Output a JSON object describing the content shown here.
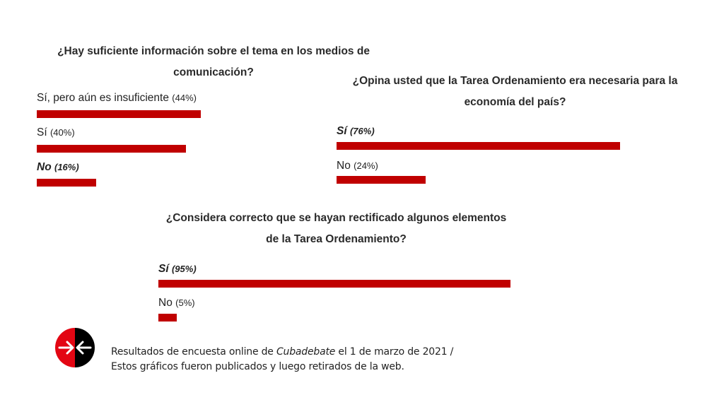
{
  "chart_data": [
    {
      "type": "bar",
      "orientation": "horizontal",
      "title_lines": [
        "¿Hay suficiente información sobre el tema en los medios de",
        "comunicación?"
      ],
      "categories": [
        "Sí, pero aún es insuficiente",
        "Sí",
        "No"
      ],
      "value_labels": [
        "(44%)",
        "(40%)",
        "(16%)"
      ],
      "values": [
        44,
        40,
        16
      ],
      "emphasized": [
        false,
        false,
        true
      ],
      "xlim": [
        0,
        100
      ],
      "bar_color": "#c00000"
    },
    {
      "type": "bar",
      "orientation": "horizontal",
      "title_lines": [
        "¿Opina usted que la Tarea Ordenamiento era necesaria para la",
        "economía del país?"
      ],
      "categories": [
        "Sí",
        "No"
      ],
      "value_labels": [
        "(76%)",
        "(24%)"
      ],
      "values": [
        76,
        24
      ],
      "emphasized": [
        true,
        false
      ],
      "xlim": [
        0,
        100
      ],
      "bar_color": "#c00000"
    },
    {
      "type": "bar",
      "orientation": "horizontal",
      "title_lines": [
        "¿Considera correcto que se hayan rectificado algunos elementos",
        "de la Tarea Ordenamiento?"
      ],
      "categories": [
        "Sí",
        "No"
      ],
      "value_labels": [
        "(95%)",
        "(5%)"
      ],
      "values": [
        95,
        5
      ],
      "emphasized": [
        true,
        false
      ],
      "xlim": [
        0,
        100
      ],
      "bar_color": "#c00000"
    }
  ],
  "footer": {
    "line1_before": "Resultados de encuesta online de ",
    "line1_italic": "Cubadebate",
    "line1_after": " el 1 de marzo de 2021 /",
    "line2": "Estos gráficos fueron publicados y luego retirados de la web."
  },
  "logo": {
    "icon": "cubadebate-logo-icon",
    "colors": [
      "#e30613",
      "#000000"
    ]
  }
}
